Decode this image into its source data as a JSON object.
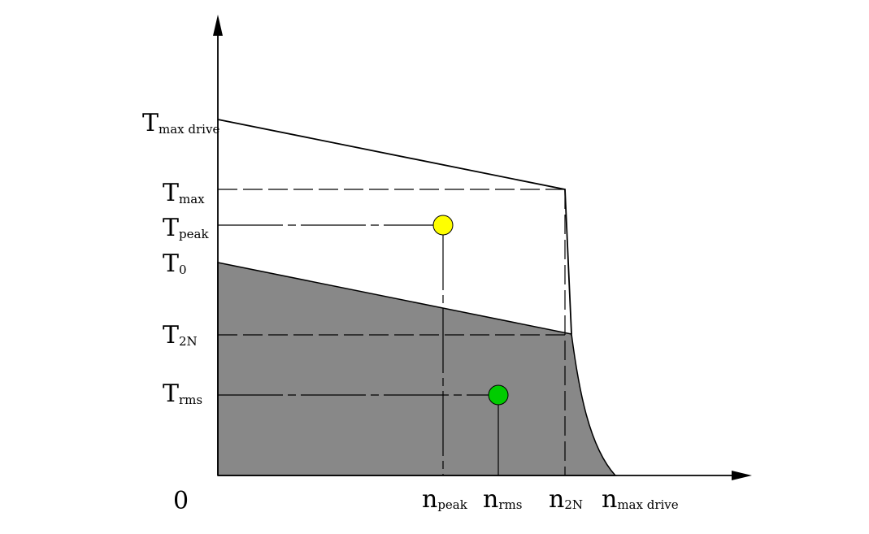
{
  "diagram": {
    "y_labels": {
      "t_max_drive": {
        "main": "T",
        "sub": "max drive"
      },
      "t_max": {
        "main": "T",
        "sub": "max"
      },
      "t_peak": {
        "main": "T",
        "sub": "peak"
      },
      "t_0": {
        "main": "T",
        "sub": "0"
      },
      "t_2n": {
        "main": "T",
        "sub": "2N"
      },
      "t_rms": {
        "main": "T",
        "sub": "rms"
      }
    },
    "x_labels": {
      "origin": "0",
      "n_peak": {
        "main": "n",
        "sub": "peak"
      },
      "n_rms": {
        "main": "n",
        "sub": "rms"
      },
      "n_2n": {
        "main": "n",
        "sub": "2N"
      },
      "n_max_drive": {
        "main": "n",
        "sub": "max drive"
      }
    },
    "colors": {
      "continuous_region": "#888888",
      "peak_point": "#ffff00",
      "rms_point": "#00cc00",
      "lines": "#000000"
    }
  }
}
